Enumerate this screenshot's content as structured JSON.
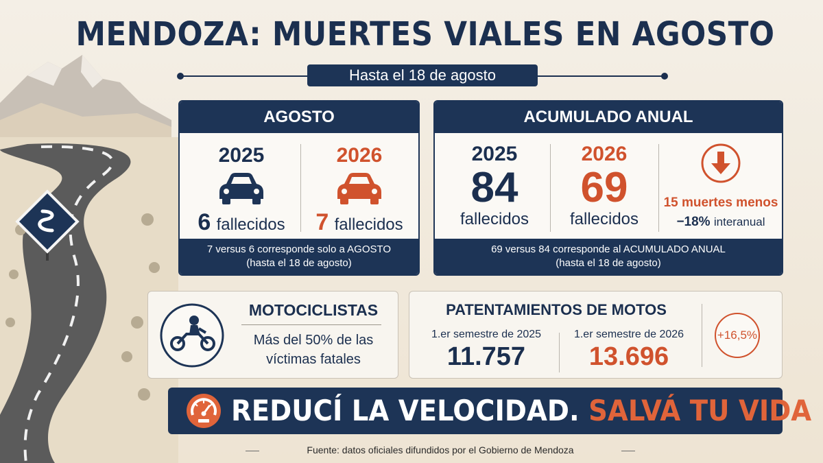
{
  "title": "MENDOZA: MUERTES VIALES EN AGOSTO",
  "subtitle": "Hasta el 18 de agosto",
  "agosto": {
    "header": "AGOSTO",
    "left": {
      "year": "2025",
      "number": "6",
      "label": "fallecidos"
    },
    "right": {
      "year": "2026",
      "number": "7",
      "label": "fallecidos"
    },
    "footer_line1": "7 versus 6 corresponde solo a AGOSTO",
    "footer_line2": "(hasta el 18 de agosto)"
  },
  "anual": {
    "header": "ACUMULADO ANUAL",
    "left": {
      "year": "2025",
      "value": "84",
      "label": "fallecidos"
    },
    "right": {
      "year": "2026",
      "value": "69",
      "label": "fallecidos"
    },
    "change_line1": "15 muertes menos",
    "change_pct": "−18%",
    "change_suffix": "interanual",
    "footer_line1": "69 versus 84 corresponde al ACUMULADO ANUAL",
    "footer_line2": "(hasta el 18 de agosto)"
  },
  "moto": {
    "title": "MOTOCICLISTAS",
    "line1": "Más del 50% de las",
    "line2": "víctimas fatales"
  },
  "patentamientos": {
    "title": "PATENTAMIENTOS DE MOTOS",
    "left_label": "1.er semestre de 2025",
    "left_value": "11.757",
    "right_label": "1.er semestre de 2026",
    "right_value": "13.696",
    "change": "+16,5%"
  },
  "banner": {
    "part1": "REDUCÍ LA VELOCIDAD.",
    "part2": "SALVÁ TU VIDA"
  },
  "source": "Fuente: datos oficiales difundidos por el Gobierno de Mendoza",
  "colors": {
    "navy": "#1d3456",
    "orange": "#d0522d",
    "background": "#f3ece1"
  },
  "icons": [
    "car-icon",
    "down-arrow-icon",
    "motorcycle-icon",
    "speedometer-icon",
    "road-sign-icon"
  ]
}
